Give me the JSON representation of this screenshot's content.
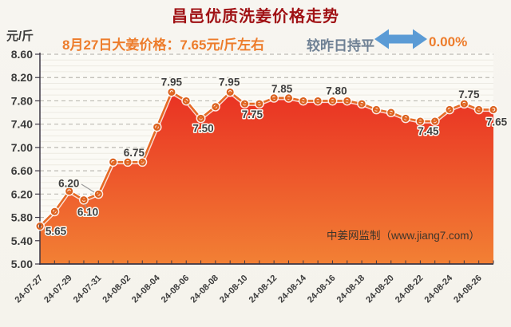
{
  "header": {
    "title": "昌邑优质洗姜价格走势",
    "y_unit": "元/斤",
    "price_note": "8月27日大姜价格：7.65元/斤左右",
    "trend_label": "较昨日持平",
    "trend_value": "0.00%"
  },
  "watermark": "中姜网监制（www.jiang7.com）",
  "colors": {
    "title": "#a01215",
    "accent_orange": "#ed7c2b",
    "trend_label_gray": "#6e8094",
    "arrow_blue": "#5b9bd5",
    "area_top": "#e93123",
    "area_bottom": "#f28034",
    "line": "#e56a25",
    "marker_ring": "#db621f",
    "axis": "#3c3644",
    "grid_major": "#bcbab3",
    "grid_minor": "#eceae2",
    "plot_bg": "#fbfaf5",
    "tick_text": "#3c3c3c",
    "data_label": "#3f3f3f",
    "watermark_text": "#3e352b",
    "leader": "#9a9a9a"
  },
  "chart_data": {
    "type": "area",
    "title": "昌邑优质洗姜价格走势",
    "ylabel": "元/斤",
    "xlabel": "",
    "ylim": [
      5.0,
      8.6
    ],
    "y_tick_step": 0.4,
    "y_ticks": [
      "8.60",
      "8.20",
      "7.80",
      "7.40",
      "7.00",
      "6.60",
      "6.20",
      "5.80",
      "5.40",
      "5.00"
    ],
    "grid": true,
    "legend": false,
    "x": [
      "24-07-27",
      "24-07-28",
      "24-07-29",
      "24-07-30",
      "24-07-31",
      "24-08-01",
      "24-08-02",
      "24-08-03",
      "24-08-04",
      "24-08-05",
      "24-08-06",
      "24-08-07",
      "24-08-08",
      "24-08-09",
      "24-08-10",
      "24-08-11",
      "24-08-12",
      "24-08-13",
      "24-08-14",
      "24-08-15",
      "24-08-16",
      "24-08-17",
      "24-08-18",
      "24-08-19",
      "24-08-20",
      "24-08-21",
      "24-08-22",
      "24-08-23",
      "24-08-24",
      "24-08-25",
      "24-08-26",
      "24-08-27"
    ],
    "x_tick_labels": [
      "24-07-27",
      "24-07-29",
      "24-07-31",
      "24-08-02",
      "24-08-04",
      "24-08-06",
      "24-08-08",
      "24-08-10",
      "24-08-12",
      "24-08-14",
      "24-08-16",
      "24-08-18",
      "24-08-20",
      "24-08-22",
      "24-08-24",
      "24-08-26"
    ],
    "values": [
      5.65,
      5.9,
      6.25,
      6.1,
      6.2,
      6.75,
      6.75,
      6.75,
      7.35,
      7.95,
      7.8,
      7.5,
      7.7,
      7.95,
      7.75,
      7.75,
      7.85,
      7.85,
      7.8,
      7.8,
      7.8,
      7.8,
      7.75,
      7.65,
      7.6,
      7.5,
      7.45,
      7.45,
      7.65,
      7.75,
      7.65,
      7.65
    ],
    "point_labels": [
      {
        "i": 0,
        "text": "5.65"
      },
      {
        "i": 3,
        "text": "6.10"
      },
      {
        "i": 4,
        "text": "6.20"
      },
      {
        "i": 6,
        "text": "6.75"
      },
      {
        "i": 9,
        "text": "7.95"
      },
      {
        "i": 11,
        "text": "7.50"
      },
      {
        "i": 13,
        "text": "7.95"
      },
      {
        "i": 15,
        "text": "7.75"
      },
      {
        "i": 16,
        "text": "7.85"
      },
      {
        "i": 20,
        "text": "7.80"
      },
      {
        "i": 26,
        "text": "7.45"
      },
      {
        "i": 29,
        "text": "7.75"
      },
      {
        "i": 31,
        "text": "7.65"
      }
    ]
  }
}
